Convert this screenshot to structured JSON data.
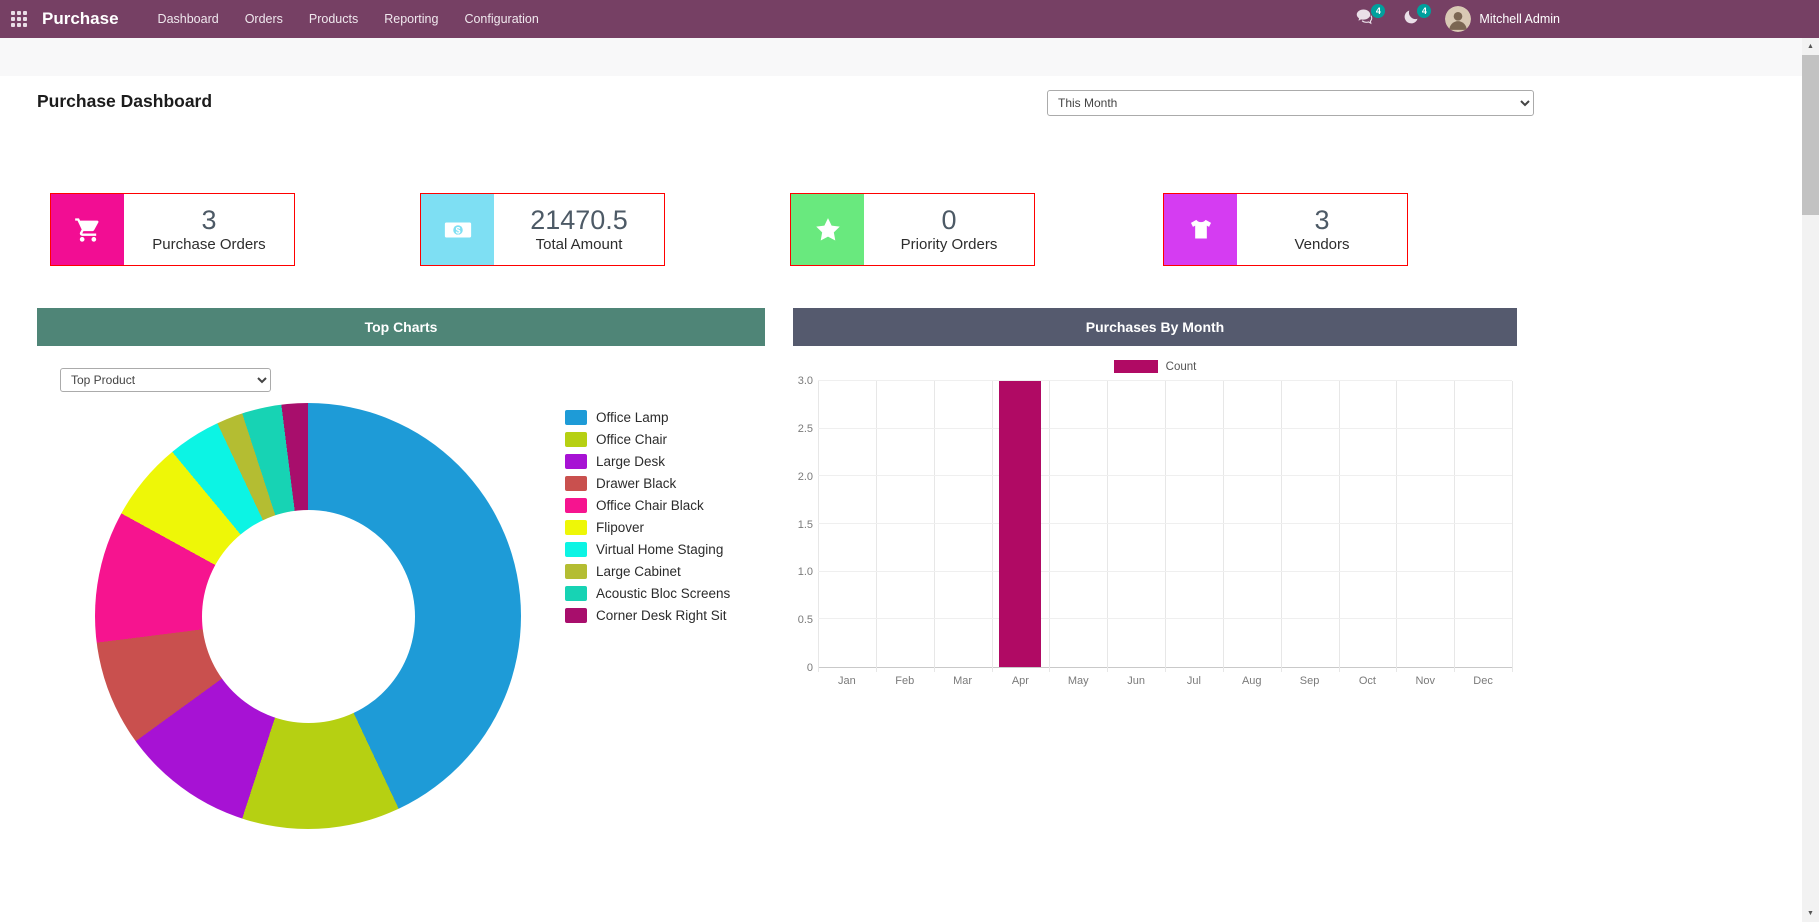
{
  "navbar": {
    "color": "#764064",
    "app_name": "Purchase",
    "menu": [
      "Dashboard",
      "Orders",
      "Products",
      "Reporting",
      "Configuration"
    ],
    "messages_badge": "4",
    "activities_badge": "4",
    "user_name": "Mitchell Admin"
  },
  "page": {
    "title": "Purchase Dashboard",
    "period_filter": "This Month"
  },
  "kpis": [
    {
      "value": "3",
      "label": "Purchase Orders",
      "icon": "shopping-cart-icon",
      "color": "#f20d93"
    },
    {
      "value": "21470.5",
      "label": "Total Amount",
      "icon": "money-icon",
      "color": "#7edff3"
    },
    {
      "value": "0",
      "label": "Priority Orders",
      "icon": "star-icon",
      "color": "#69e97e"
    },
    {
      "value": "3",
      "label": "Vendors",
      "icon": "shirt-icon",
      "color": "#d53cf2"
    }
  ],
  "panels": {
    "top_charts": {
      "title": "Top Charts",
      "filter_value": "Top Product",
      "header_color": "#4f8577"
    },
    "purchases_by_month": {
      "title": "Purchases By Month",
      "header_color": "#555a6e"
    }
  },
  "chart_data": [
    {
      "type": "pie",
      "donut": true,
      "title": "Top Product",
      "labels": [
        "Office Lamp",
        "Office Chair",
        "Large Desk",
        "Drawer Black",
        "Office Chair Black",
        "Flipover",
        "Virtual Home Staging",
        "Large Cabinet",
        "Acoustic Bloc Screens",
        "Corner Desk Right Sit"
      ],
      "values": [
        43,
        12,
        10,
        8,
        10,
        6,
        4,
        2,
        3,
        2
      ],
      "unit": "%",
      "colors": [
        "#1e9bd7",
        "#b6d012",
        "#a712d4",
        "#c9504e",
        "#f6148f",
        "#eef707",
        "#0cf4e4",
        "#b4bd32",
        "#17d3b4",
        "#a80e6c"
      ],
      "legend_position": "right"
    },
    {
      "type": "bar",
      "title": "Purchases By Month",
      "categories": [
        "Jan",
        "Feb",
        "Mar",
        "Apr",
        "May",
        "Jun",
        "Jul",
        "Aug",
        "Sep",
        "Oct",
        "Nov",
        "Dec"
      ],
      "series": [
        {
          "name": "Count",
          "values": [
            0,
            0,
            0,
            3,
            0,
            0,
            0,
            0,
            0,
            0,
            0,
            0
          ],
          "color": "#b00a64"
        }
      ],
      "ylim": [
        0,
        3
      ],
      "ytick_labels": [
        "0",
        "0.5",
        "1.0",
        "1.5",
        "2.0",
        "2.5",
        "3.0"
      ],
      "grid": true,
      "legend_position": "top"
    }
  ]
}
